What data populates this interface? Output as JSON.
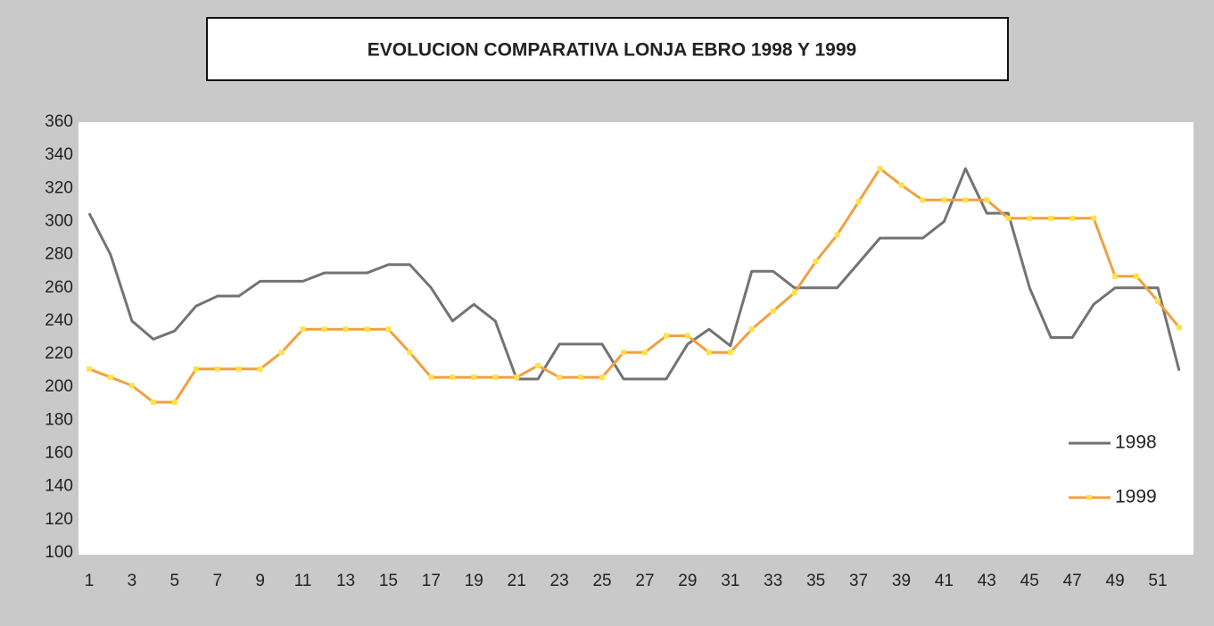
{
  "chart_data": {
    "type": "line",
    "title": "EVOLUCION COMPARATIVA LONJA EBRO 1998 Y 1999",
    "categories": [
      "1",
      null,
      "3",
      null,
      "5",
      null,
      "7",
      null,
      "9",
      null,
      "11",
      null,
      "13",
      null,
      "15",
      null,
      "17",
      null,
      "19",
      null,
      "21",
      null,
      "23",
      null,
      "25",
      null,
      "27",
      null,
      "29",
      null,
      "31",
      null,
      "33",
      null,
      "35",
      null,
      "37",
      null,
      "39",
      null,
      "41",
      null,
      "43",
      null,
      "45",
      null,
      "47",
      null,
      "49",
      null,
      "51",
      null
    ],
    "series": [
      {
        "name": "1998",
        "color": "#737373",
        "values": [
          305,
          280,
          240,
          229,
          234,
          249,
          255,
          255,
          264,
          264,
          264,
          269,
          269,
          269,
          274,
          274,
          260,
          240,
          250,
          240,
          205,
          205,
          226,
          226,
          226,
          205,
          205,
          205,
          226,
          235,
          225,
          270,
          270,
          260,
          260,
          260,
          275,
          290,
          290,
          290,
          300,
          332,
          305,
          305,
          260,
          230,
          230,
          250,
          260,
          260,
          260,
          210
        ]
      },
      {
        "name": "1999",
        "color": "#f0a040",
        "marker_color": "#ffe14a",
        "values": [
          211,
          206,
          201,
          191,
          191,
          211,
          211,
          211,
          211,
          221,
          235,
          235,
          235,
          235,
          235,
          221,
          206,
          206,
          206,
          206,
          206,
          213,
          206,
          206,
          206,
          221,
          221,
          231,
          231,
          221,
          221,
          235,
          246,
          257,
          276,
          292,
          312,
          332,
          322,
          313,
          313,
          313,
          313,
          302,
          302,
          302,
          302,
          302,
          267,
          267,
          252,
          236
        ]
      }
    ],
    "ylim": [
      100,
      360
    ],
    "yticks": [
      100,
      120,
      140,
      160,
      180,
      200,
      220,
      240,
      260,
      280,
      300,
      320,
      340,
      360
    ],
    "grid": false,
    "legend": "right"
  }
}
